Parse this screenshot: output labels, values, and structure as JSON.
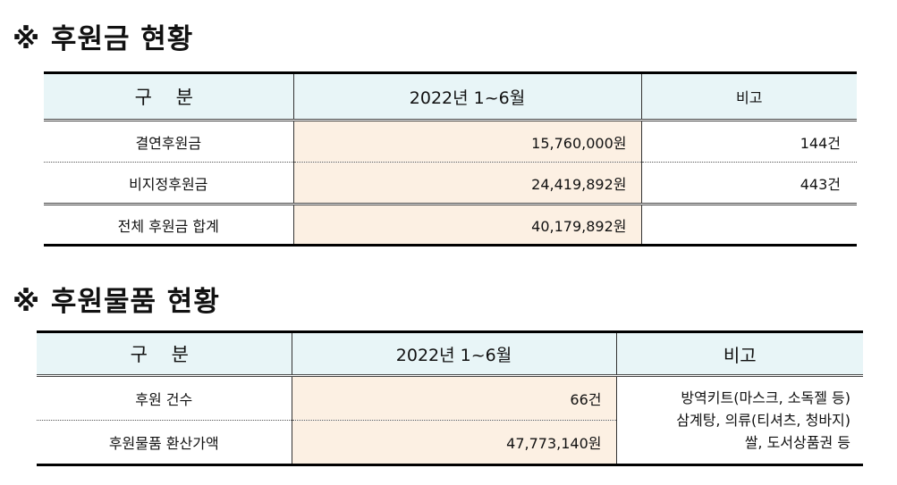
{
  "section1": {
    "title": "※ 후원금 현황",
    "headers": [
      "구 분",
      "2022년 1~6월",
      "비고"
    ],
    "rows": [
      {
        "label": "결연후원금",
        "amount": "15,760,000원",
        "note": "144건"
      },
      {
        "label": "비지정후원금",
        "amount": "24,419,892원",
        "note": "443건"
      }
    ],
    "total": {
      "label": "전체 후원금 합계",
      "amount": "40,179,892원",
      "note": ""
    }
  },
  "section2": {
    "title": "※ 후원물품 현황",
    "headers": [
      "구 분",
      "2022년 1~6월",
      "비고"
    ],
    "rows": [
      {
        "label": "후원 건수",
        "amount": "66건"
      },
      {
        "label": "후원물품 환산가액",
        "amount": "47,773,140원"
      }
    ],
    "note_lines": [
      "방역키트(마스크, 소독젤 등)",
      "삼계탕, 의류(티셔츠, 청바지)",
      "쌀, 도서상품권 등"
    ]
  }
}
